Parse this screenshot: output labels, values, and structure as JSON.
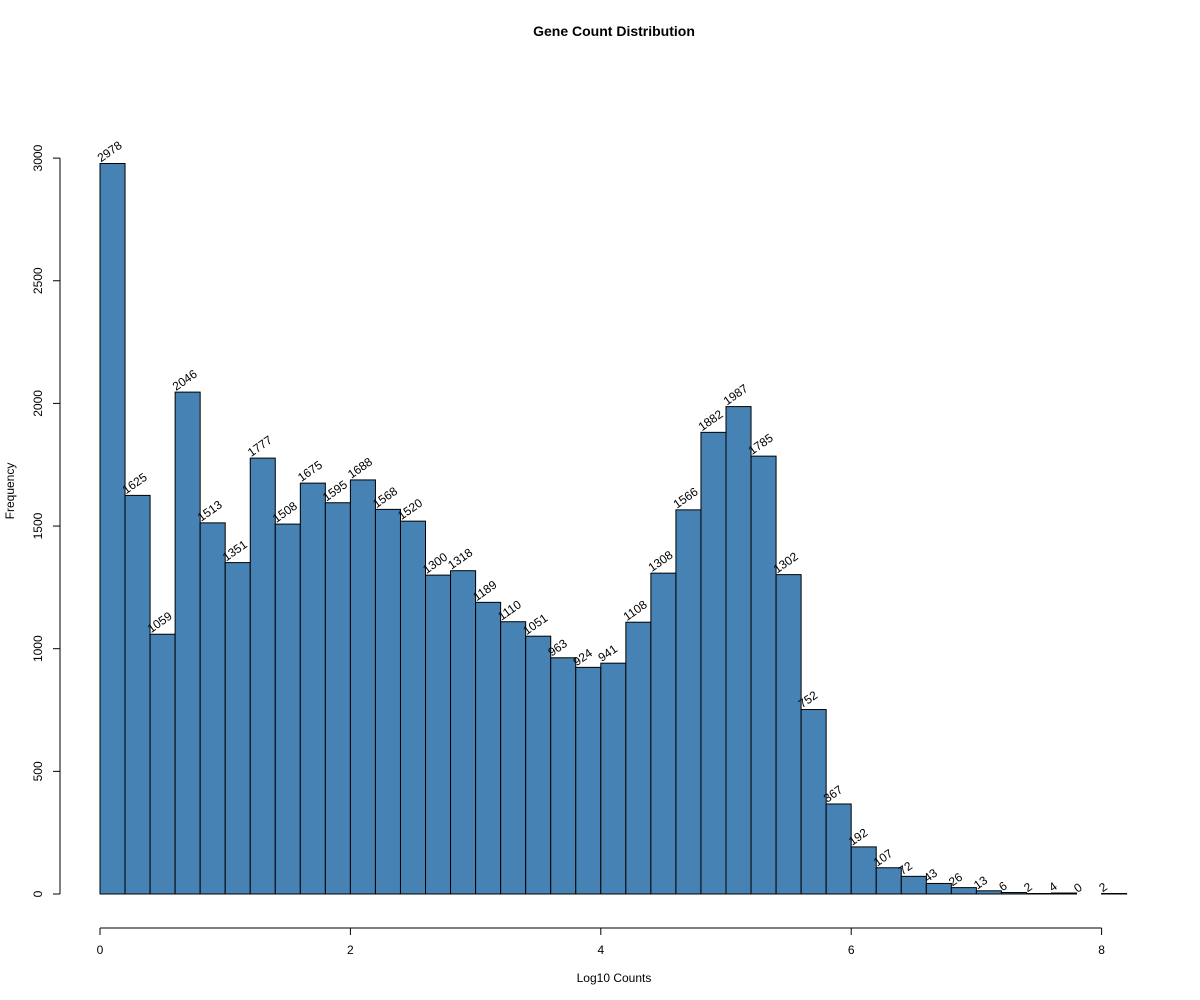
{
  "chart_data": {
    "type": "bar",
    "title": "Gene Count Distribution",
    "xlabel": "Log10 Counts",
    "ylabel": "Frequency",
    "bar_color": "#4682B4",
    "bar_edge_color": "#000000",
    "bin_width": 0.2,
    "bin_start": 0,
    "xlim": [
      0,
      8.2
    ],
    "ylim": [
      0,
      3000
    ],
    "x_ticks": [
      0,
      2,
      4,
      6,
      8
    ],
    "y_ticks": [
      0,
      500,
      1000,
      1500,
      2000,
      2500,
      3000
    ],
    "values": [
      2978,
      1625,
      1059,
      2046,
      1513,
      1351,
      1777,
      1508,
      1675,
      1595,
      1688,
      1568,
      1520,
      1300,
      1318,
      1189,
      1110,
      1051,
      963,
      924,
      941,
      1108,
      1308,
      1566,
      1882,
      1987,
      1785,
      1302,
      752,
      367,
      192,
      107,
      72,
      43,
      26,
      13,
      6,
      2,
      4,
      0,
      2
    ],
    "grid": false,
    "legend": "none"
  }
}
